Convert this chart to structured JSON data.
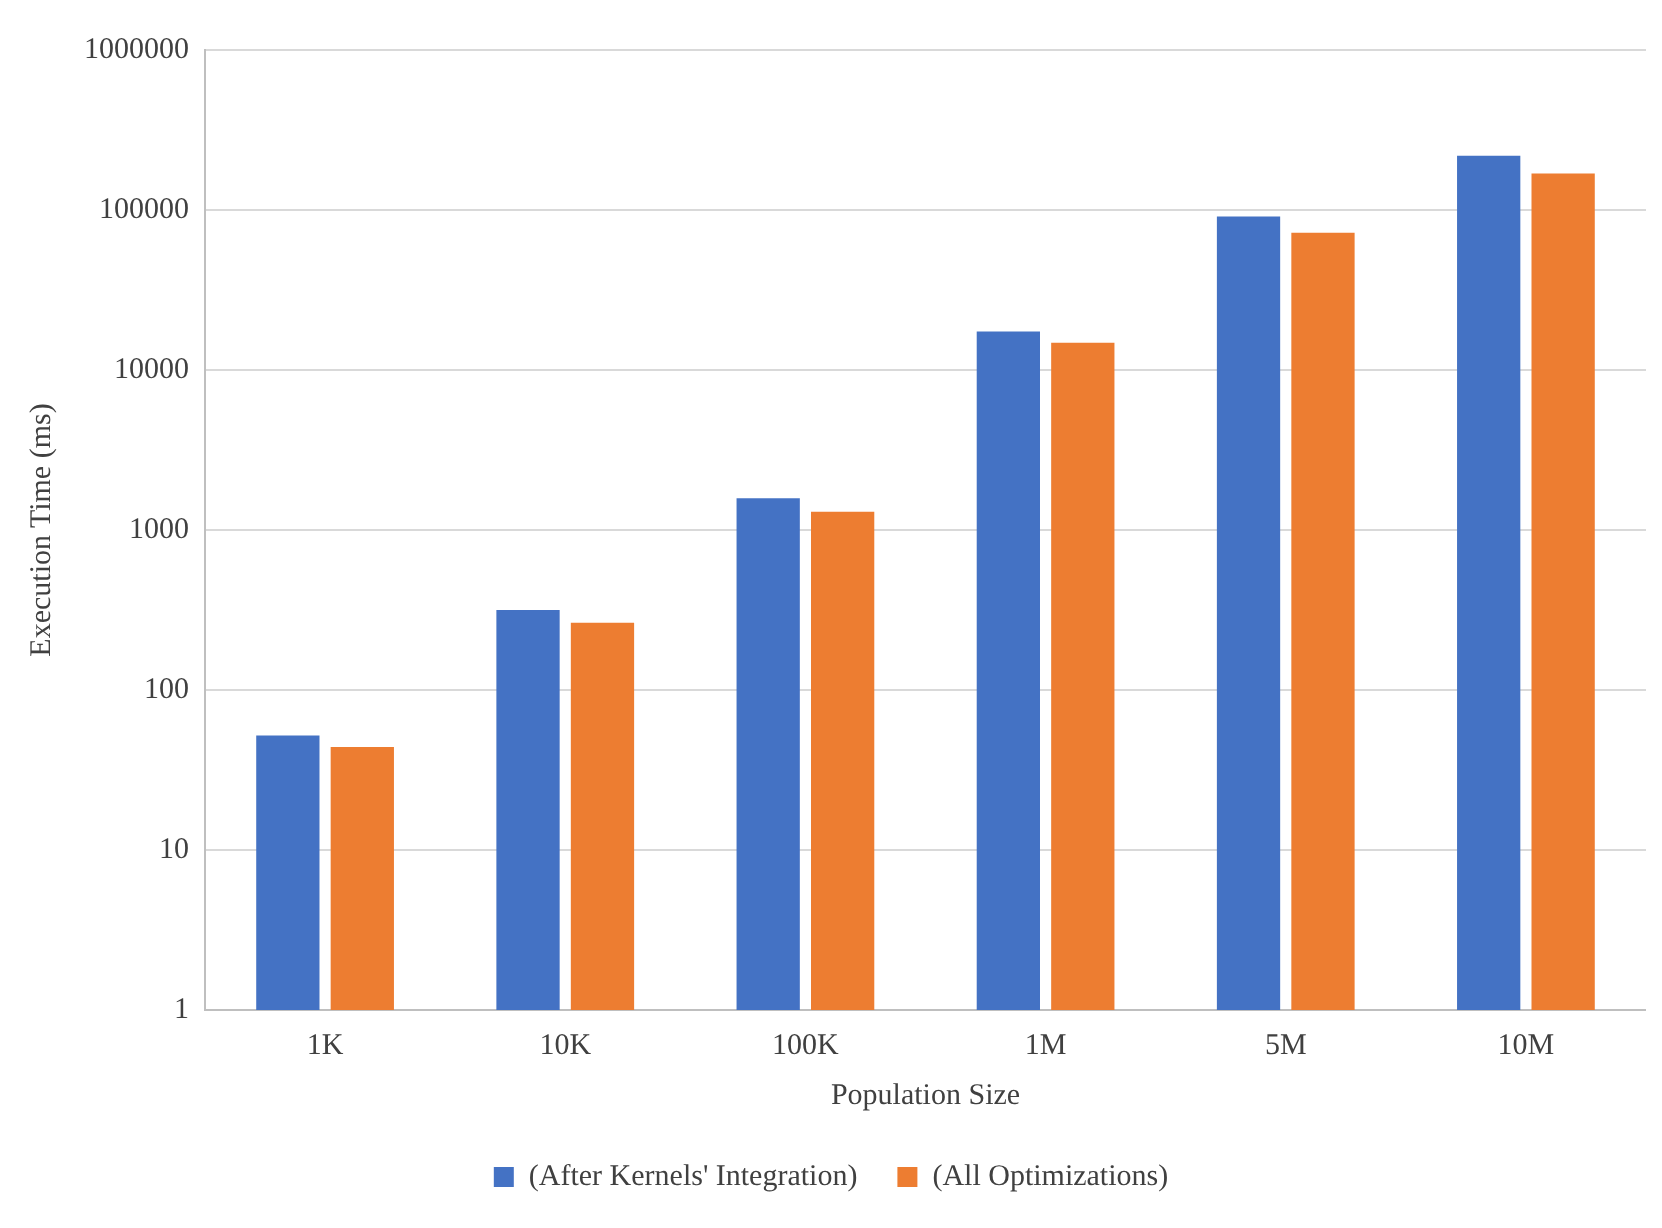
{
  "chart_data": {
    "type": "bar",
    "xlabel": "Population Size",
    "ylabel": "Execution Time (ms)",
    "categories": [
      "1K",
      "10K",
      "100K",
      "1M",
      "5M",
      "10M"
    ],
    "series": [
      {
        "name": "(After Kernels' Integration)",
        "color": "#4472c4",
        "values": [
          52,
          316,
          1580,
          17400,
          91000,
          218000
        ]
      },
      {
        "name": "(All Optimizations)",
        "color": "#ed7d31",
        "values": [
          44,
          263,
          1300,
          14800,
          72000,
          169000
        ]
      }
    ],
    "log": true,
    "ylim": [
      1,
      1000000
    ],
    "yticks": [
      1,
      10,
      100,
      1000,
      10000,
      100000,
      1000000
    ],
    "grid": "y",
    "legend": "bottom"
  }
}
